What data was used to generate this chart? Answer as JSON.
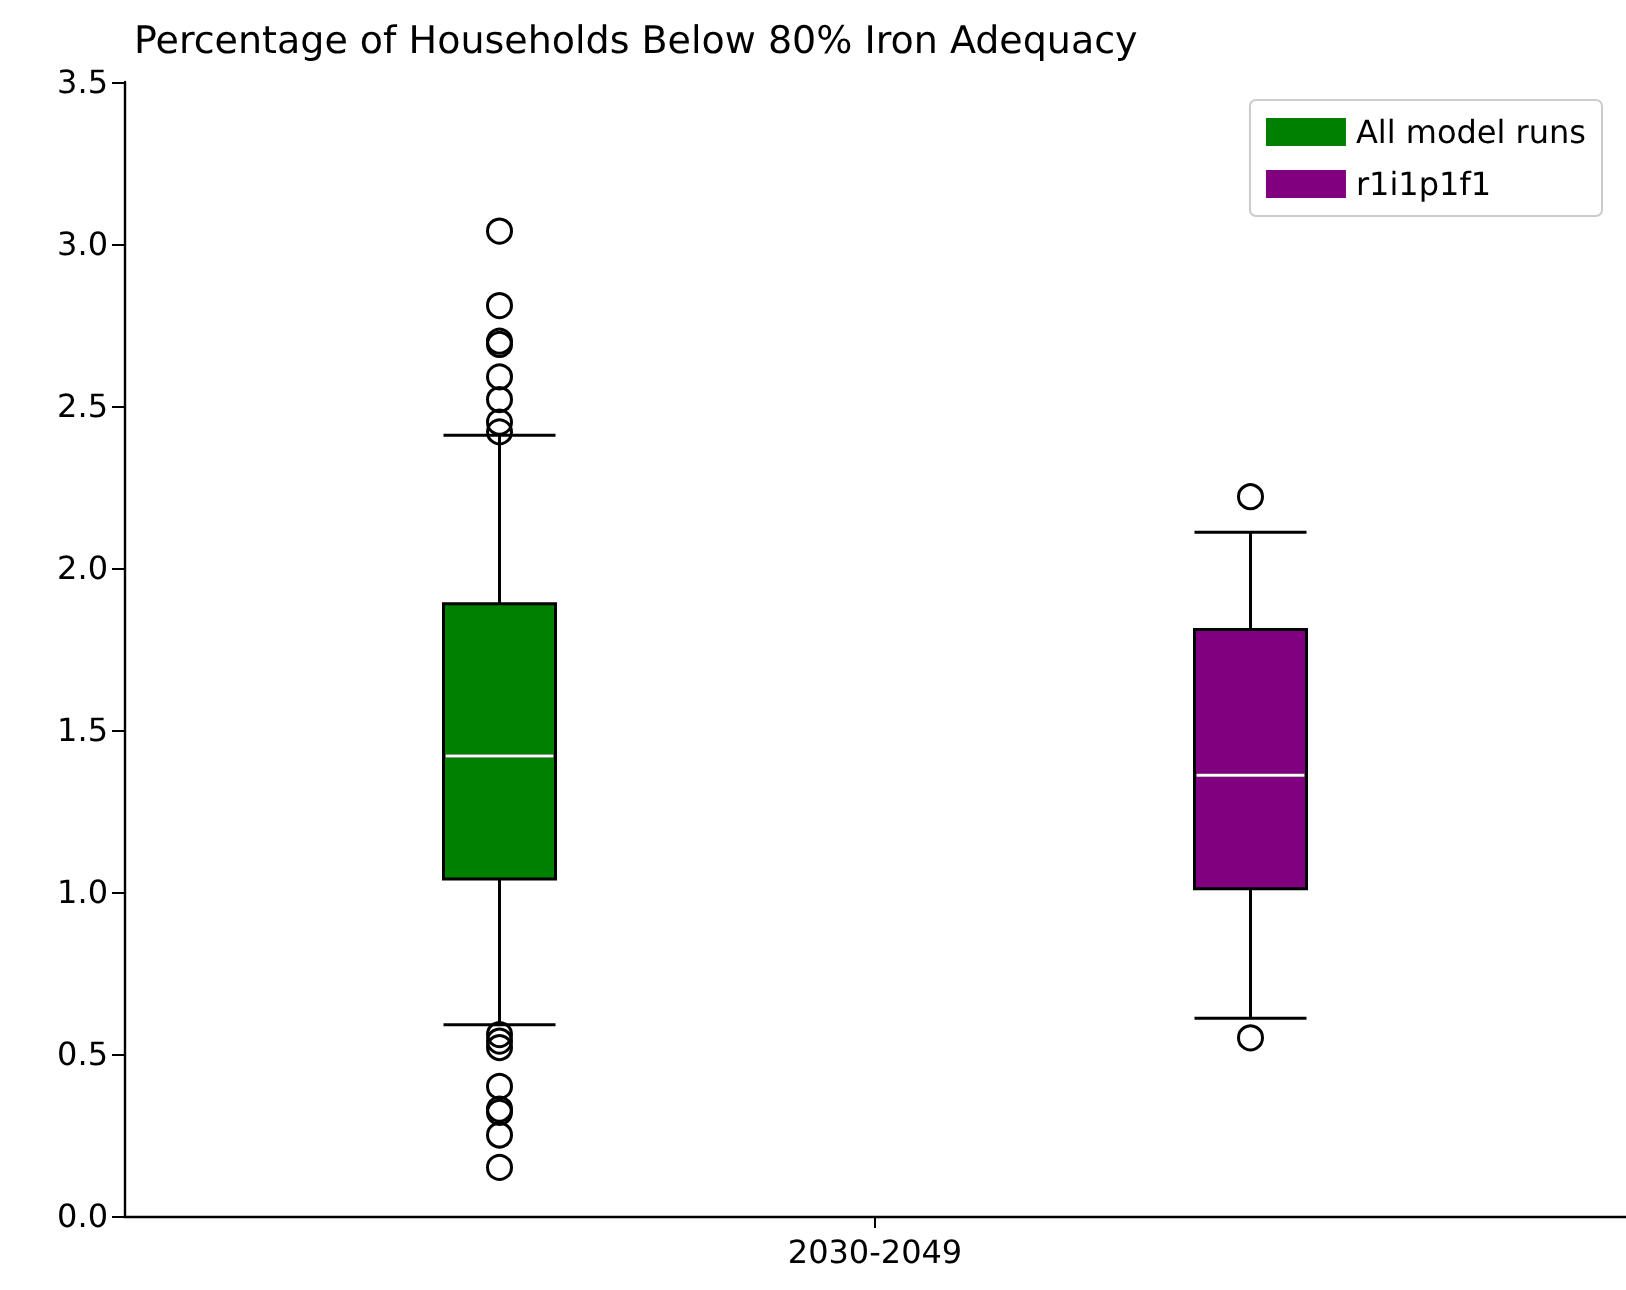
{
  "chart_data": {
    "type": "box",
    "title": "Percentage of Households Below 80% Iron Adequacy",
    "categories": [
      "2030-2049"
    ],
    "ylim": [
      0,
      3.5
    ],
    "yticks": [
      {
        "value": 0,
        "label": "0.0"
      },
      0.5,
      {
        "value": 1,
        "label": "1.0"
      },
      1.5,
      {
        "value": 2,
        "label": "2.0"
      },
      2.5,
      {
        "value": 3,
        "label": "3.0"
      },
      3.5
    ],
    "grid": false,
    "legend": "top right",
    "marker": "circle",
    "series": [
      {
        "name": "All model runs",
        "color": "#008000",
        "boxes": [
          {
            "low": 0.59,
            "q1": 1.04,
            "median": 1.42,
            "q3": 1.89,
            "high": 2.41,
            "outliers": [
              3.04,
              2.81,
              2.7,
              2.69,
              2.59,
              2.52,
              2.45,
              2.42,
              0.56,
              0.54,
              0.52,
              0.4,
              0.33,
              0.32,
              0.25,
              0.15
            ]
          }
        ]
      },
      {
        "name": "r1i1p1f1",
        "color": "#800080",
        "boxes": [
          {
            "low": 0.61,
            "q1": 1.01,
            "median": 1.36,
            "q3": 1.81,
            "high": 2.11,
            "outliers": [
              2.22,
              0.55
            ]
          }
        ]
      }
    ]
  }
}
